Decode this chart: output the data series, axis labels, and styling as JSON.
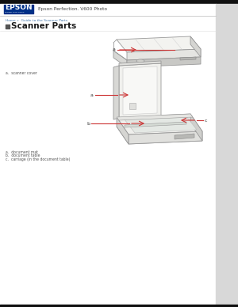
{
  "page_bg": "#e8e8e8",
  "content_bg": "#ffffff",
  "right_panel_bg": "#d8d8d8",
  "header_line_color": "#cccccc",
  "epson_color": "#003087",
  "epson_text": "EPSON",
  "epson_sub": "EXCEED YOUR VISION",
  "model_text": "Epson Perfection. V600 Photo",
  "breadcrumb": "Home »  Guide to the Scanner Parts",
  "title_text": "Scanner Parts",
  "label1_text": "a.  scanner cover",
  "label2a": "a.  document mat",
  "label2b": "b.  document table",
  "label2c": "c.  carriage (in the document table)",
  "arrow_color": "#cc3333",
  "scanner_face_color": "#f5f5f3",
  "scanner_side_color": "#e2e2de",
  "scanner_dark_color": "#d0d0cc",
  "scanner_edge_color": "#999999",
  "scanner_inner_color": "#ededea",
  "glass_color": "#e8eae8",
  "text_color": "#333333",
  "small_text_color": "#555555"
}
